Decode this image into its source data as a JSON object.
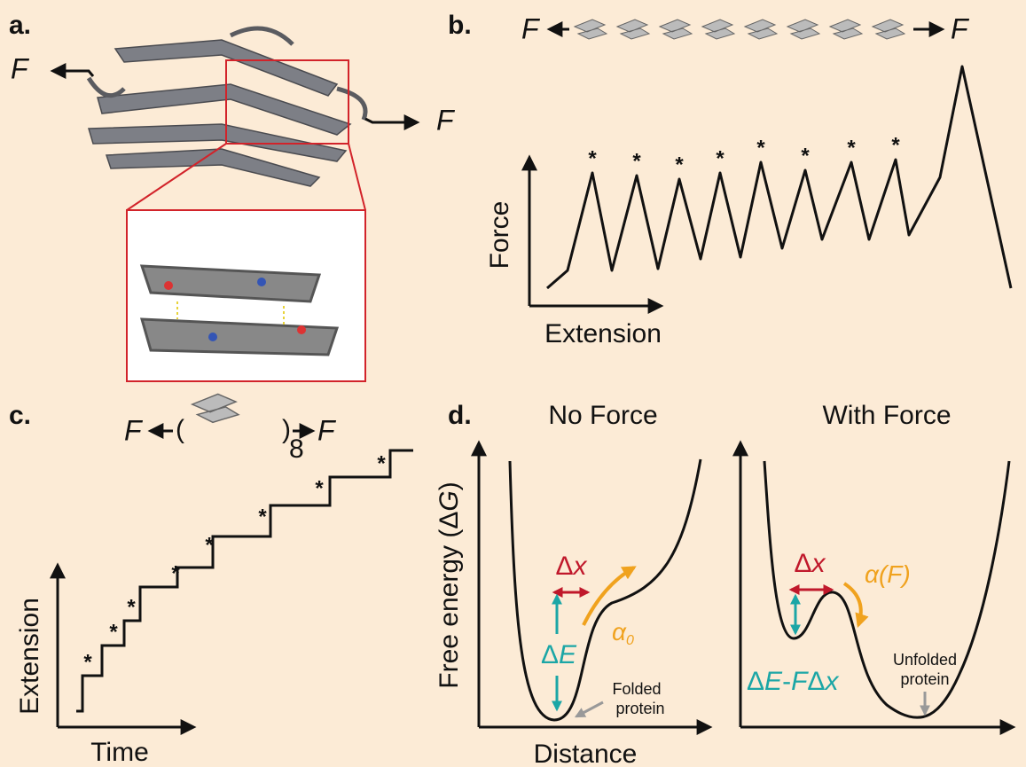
{
  "panels": {
    "a": {
      "label": "a.",
      "force_left": "F",
      "force_right": "F"
    },
    "b": {
      "label": "b.",
      "force_left": "F",
      "force_right": "F",
      "y_label": "Force",
      "x_label": "Extension",
      "peak_marker": "*"
    },
    "c": {
      "label": "c.",
      "force_left": "F",
      "open_paren": "(",
      "close_paren": ")",
      "repeat": "8",
      "force_right": "F",
      "y_label": "Extension",
      "x_label": "Time",
      "step_marker": "*"
    },
    "d": {
      "label": "d.",
      "left_title": "No Force",
      "right_title": "With Force",
      "y_label_pre": "Free energy (Δ",
      "y_label_var": "G",
      "y_label_post": ")",
      "x_label": "Distance",
      "left": {
        "dx_delta": "Δ",
        "dx_var": "x",
        "alpha": "α",
        "alpha_sub": "0",
        "de_delta": "Δ",
        "de_var": "E",
        "folded_1": "Folded",
        "folded_2": "protein"
      },
      "right": {
        "dx_delta": "Δ",
        "dx_var": "x",
        "alpha": "α",
        "alpha_arg": "(F)",
        "barrier_1": "Δ",
        "barrier_2": "E",
        "barrier_3": "-",
        "barrier_4": "F",
        "barrier_5": "Δ",
        "barrier_6": "x",
        "unfolded_1": "Unfolded",
        "unfolded_2": "protein"
      }
    }
  }
}
